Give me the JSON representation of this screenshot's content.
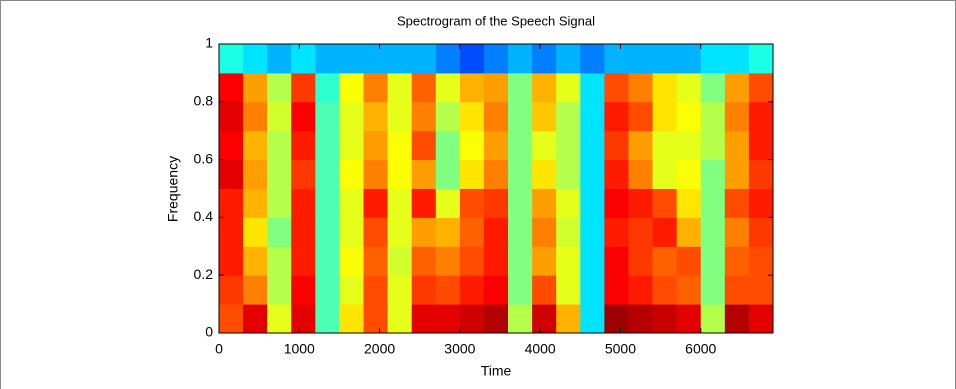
{
  "chart_data": {
    "type": "heatmap",
    "title": "Spectrogram of the Speech Signal",
    "x_label": "Time",
    "y_label": "Frequency",
    "colormap": "jet",
    "xbins": [
      0,
      300,
      600,
      900,
      1200,
      1500,
      1800,
      2100,
      2400,
      2700,
      3000,
      3300,
      3600,
      3900,
      4200,
      4500,
      4800,
      5100,
      5400,
      5700,
      6000,
      6300,
      6600,
      6900
    ],
    "ybins": [
      0,
      0.1,
      0.2,
      0.3,
      0.4,
      0.5,
      0.6,
      0.7,
      0.8,
      0.9,
      1
    ],
    "z": [
      [
        0.8,
        0.9,
        0.6,
        0.9,
        0.45,
        0.65,
        0.8,
        0.6,
        0.9,
        0.9,
        0.92,
        0.95,
        0.55,
        0.92,
        0.7,
        0.35,
        0.97,
        0.95,
        0.93,
        0.9,
        0.55,
        0.95,
        0.9
      ],
      [
        0.82,
        0.75,
        0.55,
        0.88,
        0.45,
        0.6,
        0.8,
        0.6,
        0.82,
        0.8,
        0.85,
        0.88,
        0.5,
        0.8,
        0.6,
        0.35,
        0.88,
        0.85,
        0.8,
        0.78,
        0.5,
        0.8,
        0.8
      ],
      [
        0.85,
        0.7,
        0.55,
        0.85,
        0.45,
        0.62,
        0.78,
        0.58,
        0.78,
        0.75,
        0.8,
        0.85,
        0.5,
        0.72,
        0.6,
        0.35,
        0.88,
        0.82,
        0.78,
        0.8,
        0.5,
        0.78,
        0.8
      ],
      [
        0.85,
        0.65,
        0.5,
        0.85,
        0.45,
        0.6,
        0.8,
        0.6,
        0.72,
        0.7,
        0.78,
        0.85,
        0.5,
        0.75,
        0.58,
        0.35,
        0.85,
        0.82,
        0.85,
        0.7,
        0.5,
        0.75,
        0.82
      ],
      [
        0.85,
        0.7,
        0.55,
        0.85,
        0.45,
        0.6,
        0.85,
        0.6,
        0.85,
        0.6,
        0.8,
        0.82,
        0.5,
        0.72,
        0.6,
        0.35,
        0.88,
        0.85,
        0.8,
        0.65,
        0.5,
        0.8,
        0.85
      ],
      [
        0.9,
        0.72,
        0.55,
        0.82,
        0.45,
        0.62,
        0.75,
        0.62,
        0.72,
        0.5,
        0.65,
        0.75,
        0.5,
        0.65,
        0.55,
        0.35,
        0.85,
        0.75,
        0.6,
        0.62,
        0.5,
        0.72,
        0.82
      ],
      [
        0.88,
        0.7,
        0.55,
        0.85,
        0.45,
        0.6,
        0.72,
        0.62,
        0.8,
        0.5,
        0.62,
        0.72,
        0.5,
        0.6,
        0.55,
        0.35,
        0.82,
        0.72,
        0.6,
        0.6,
        0.55,
        0.72,
        0.85
      ],
      [
        0.9,
        0.75,
        0.58,
        0.88,
        0.45,
        0.6,
        0.7,
        0.6,
        0.75,
        0.55,
        0.65,
        0.75,
        0.5,
        0.68,
        0.55,
        0.35,
        0.85,
        0.8,
        0.65,
        0.62,
        0.55,
        0.75,
        0.85
      ],
      [
        0.88,
        0.72,
        0.55,
        0.82,
        0.42,
        0.62,
        0.75,
        0.6,
        0.78,
        0.6,
        0.7,
        0.72,
        0.5,
        0.7,
        0.6,
        0.35,
        0.8,
        0.75,
        0.65,
        0.6,
        0.5,
        0.72,
        0.8
      ],
      [
        0.4,
        0.35,
        0.3,
        0.35,
        0.3,
        0.3,
        0.3,
        0.3,
        0.3,
        0.25,
        0.2,
        0.25,
        0.3,
        0.25,
        0.3,
        0.25,
        0.3,
        0.3,
        0.3,
        0.3,
        0.35,
        0.35,
        0.4
      ]
    ],
    "xlim": [
      0,
      6900
    ],
    "ylim": [
      0,
      1
    ],
    "xticks": [
      0,
      1000,
      2000,
      3000,
      4000,
      5000,
      6000
    ],
    "yticks": [
      0,
      0.2,
      0.4,
      0.6,
      0.8,
      1
    ]
  }
}
